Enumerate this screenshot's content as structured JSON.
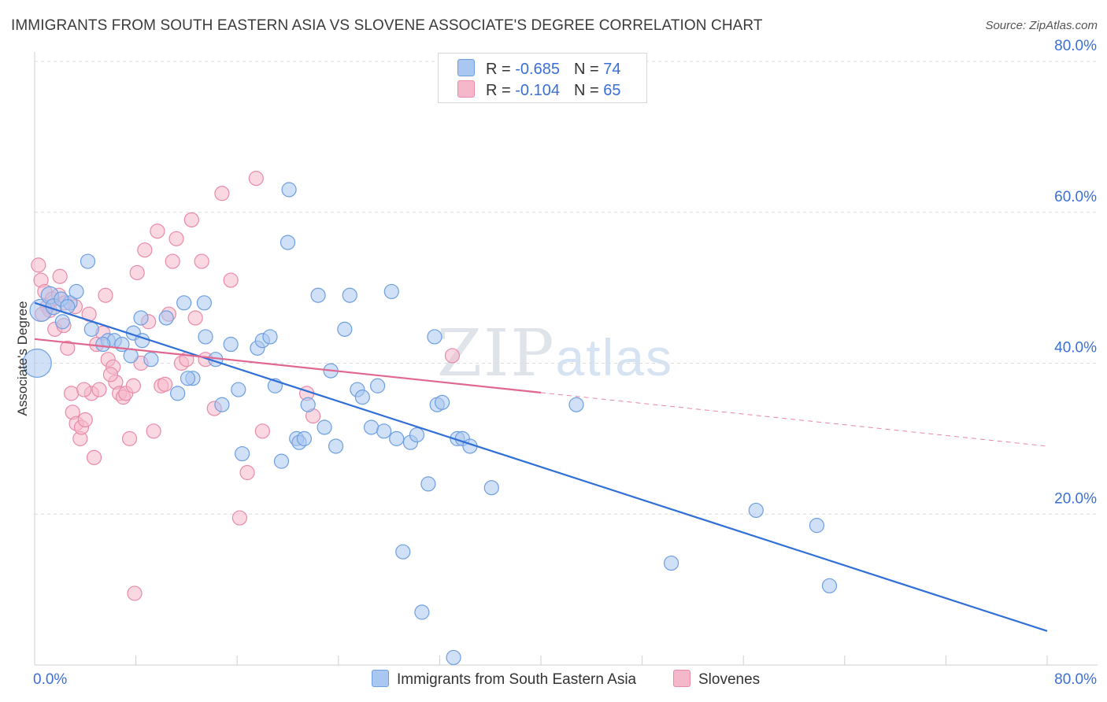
{
  "title": "IMMIGRANTS FROM SOUTH EASTERN ASIA VS SLOVENE ASSOCIATE'S DEGREE CORRELATION CHART",
  "source": "Source: ZipAtlas.com",
  "watermark": {
    "zip": "ZIP",
    "atlas": "atlas"
  },
  "legend": {
    "rows": [
      {
        "r_label": "R = ",
        "r_value": "-0.685",
        "n_label": "N = ",
        "n_value": "74",
        "color": "#a9c7f0"
      },
      {
        "r_label": "R = ",
        "r_value": "-0.104",
        "n_label": "N = ",
        "n_value": "65",
        "color": "#f5b8cb"
      }
    ]
  },
  "colors": {
    "blue_fill": "#a9c7f0",
    "blue_stroke": "#6d9fe0",
    "blue_line": "#2f6fd6",
    "pink_fill": "#f5b8cb",
    "pink_stroke": "#e98aa8",
    "pink_line": "#e0688f",
    "grid": "#dcdcdc",
    "tick_label": "#3a6fd8"
  },
  "chart_data": {
    "type": "scatter",
    "title": "IMMIGRANTS FROM SOUTH EASTERN ASIA VS SLOVENE ASSOCIATE'S DEGREE CORRELATION CHART",
    "xlabel": "",
    "ylabel": "Associate's Degree",
    "xlim": [
      0,
      80
    ],
    "ylim": [
      0,
      80
    ],
    "x_tick_labels": [
      "0.0%",
      "80.0%"
    ],
    "y_ticks": [
      20,
      40,
      60,
      80
    ],
    "y_tick_labels": [
      "20.0%",
      "40.0%",
      "60.0%",
      "80.0%"
    ],
    "series": [
      {
        "name": "Immigrants from South Eastern Asia",
        "color": "#a9c7f0",
        "trend": {
          "x0": 0,
          "y0": 48,
          "x1": 80,
          "y1": 4.5,
          "dashed_from": null
        },
        "points": [
          [
            0.2,
            40,
            18
          ],
          [
            0.5,
            47,
            14
          ],
          [
            1.2,
            49,
            11
          ],
          [
            1.5,
            47.5,
            10
          ],
          [
            2.8,
            48,
            9
          ],
          [
            2.2,
            45.5,
            9
          ],
          [
            3.3,
            49.5,
            9
          ],
          [
            2.1,
            48.5,
            9
          ],
          [
            4.2,
            53.5,
            9
          ],
          [
            2.6,
            47.5,
            9
          ],
          [
            4.5,
            44.5,
            9
          ],
          [
            5.8,
            43,
            9
          ],
          [
            6.3,
            43,
            9
          ],
          [
            5.4,
            42.5,
            9
          ],
          [
            6.9,
            42.5,
            9
          ],
          [
            7.8,
            44,
            9
          ],
          [
            8.5,
            43,
            9
          ],
          [
            8.4,
            46,
            9
          ],
          [
            7.6,
            41,
            9
          ],
          [
            10.4,
            46,
            9
          ],
          [
            11.8,
            48,
            9
          ],
          [
            12.5,
            38,
            9
          ],
          [
            12.1,
            38,
            9
          ],
          [
            9.2,
            40.5,
            9
          ],
          [
            11.3,
            36,
            9
          ],
          [
            13.5,
            43.5,
            9
          ],
          [
            13.4,
            48,
            9
          ],
          [
            14.3,
            40.5,
            9
          ],
          [
            14.8,
            34.5,
            9
          ],
          [
            15.5,
            42.5,
            9
          ],
          [
            16.1,
            36.5,
            9
          ],
          [
            16.4,
            28,
            9
          ],
          [
            17.6,
            42,
            9
          ],
          [
            18.0,
            43,
            9
          ],
          [
            18.6,
            43.5,
            9
          ],
          [
            19.0,
            37,
            9
          ],
          [
            19.5,
            27,
            9
          ],
          [
            20.0,
            56,
            9
          ],
          [
            20.1,
            63,
            9
          ],
          [
            20.7,
            30,
            9
          ],
          [
            20.9,
            29.5,
            9
          ],
          [
            21.3,
            30,
            9
          ],
          [
            21.6,
            34.5,
            9
          ],
          [
            22.4,
            49,
            9
          ],
          [
            22.9,
            31.5,
            9
          ],
          [
            23.4,
            39,
            9
          ],
          [
            23.8,
            29,
            9
          ],
          [
            24.5,
            44.5,
            9
          ],
          [
            24.9,
            49,
            9
          ],
          [
            25.5,
            36.5,
            9
          ],
          [
            25.9,
            35.5,
            9
          ],
          [
            26.6,
            31.5,
            9
          ],
          [
            27.1,
            37,
            9
          ],
          [
            27.6,
            31,
            9
          ],
          [
            28.2,
            49.5,
            9
          ],
          [
            28.6,
            30,
            9
          ],
          [
            29.1,
            15,
            9
          ],
          [
            29.7,
            29.5,
            9
          ],
          [
            30.2,
            30.5,
            9
          ],
          [
            30.6,
            7,
            9
          ],
          [
            31.1,
            24,
            9
          ],
          [
            31.6,
            43.5,
            9
          ],
          [
            31.8,
            34.5,
            9
          ],
          [
            32.2,
            34.8,
            9
          ],
          [
            33.4,
            30,
            9
          ],
          [
            33.8,
            30,
            9
          ],
          [
            34.4,
            29,
            9
          ],
          [
            36.1,
            23.5,
            9
          ],
          [
            42.8,
            34.5,
            9
          ],
          [
            50.3,
            13.5,
            9
          ],
          [
            57.0,
            20.5,
            9
          ],
          [
            61.8,
            18.5,
            9
          ],
          [
            62.8,
            10.5,
            9
          ],
          [
            33.1,
            1,
            9
          ]
        ]
      },
      {
        "name": "Slovenes",
        "color": "#f5b8cb",
        "trend": {
          "x0": 0,
          "y0": 43.2,
          "x1": 80,
          "y1": 29,
          "dashed_from": 40
        },
        "points": [
          [
            0.3,
            53,
            9
          ],
          [
            0.5,
            51,
            9
          ],
          [
            0.8,
            49.5,
            9
          ],
          [
            1.0,
            47.5,
            9
          ],
          [
            1.4,
            48.5,
            9
          ],
          [
            1.6,
            44.5,
            9
          ],
          [
            1.9,
            49,
            9
          ],
          [
            2.0,
            51.5,
            9
          ],
          [
            2.3,
            45,
            9
          ],
          [
            2.6,
            42,
            9
          ],
          [
            2.9,
            36,
            9
          ],
          [
            3.0,
            33.5,
            9
          ],
          [
            3.3,
            32,
            9
          ],
          [
            3.6,
            30,
            9
          ],
          [
            3.7,
            31.5,
            9
          ],
          [
            4.0,
            32.5,
            9
          ],
          [
            4.5,
            36,
            9
          ],
          [
            4.7,
            27.5,
            9
          ],
          [
            5.1,
            36.5,
            9
          ],
          [
            5.4,
            44,
            9
          ],
          [
            5.8,
            40.5,
            9
          ],
          [
            6.2,
            39.5,
            9
          ],
          [
            6.4,
            37.5,
            9
          ],
          [
            6.7,
            36,
            9
          ],
          [
            7.0,
            35.5,
            9
          ],
          [
            7.2,
            36,
            9
          ],
          [
            7.5,
            30,
            9
          ],
          [
            7.8,
            37,
            9
          ],
          [
            8.1,
            52,
            9
          ],
          [
            8.4,
            40,
            9
          ],
          [
            8.7,
            55,
            9
          ],
          [
            9.0,
            45.5,
            9
          ],
          [
            9.4,
            31,
            9
          ],
          [
            9.7,
            57.5,
            9
          ],
          [
            10.0,
            37,
            9
          ],
          [
            10.3,
            37.2,
            9
          ],
          [
            10.6,
            46.5,
            9
          ],
          [
            10.9,
            53.5,
            9
          ],
          [
            11.2,
            56.5,
            9
          ],
          [
            11.6,
            40,
            9
          ],
          [
            12.0,
            40.5,
            9
          ],
          [
            12.4,
            59,
            9
          ],
          [
            12.7,
            46,
            9
          ],
          [
            13.2,
            53.5,
            9
          ],
          [
            13.5,
            40.5,
            9
          ],
          [
            14.2,
            34,
            9
          ],
          [
            14.8,
            62.5,
            9
          ],
          [
            15.5,
            51,
            9
          ],
          [
            16.2,
            19.5,
            9
          ],
          [
            16.8,
            25.5,
            9
          ],
          [
            17.5,
            64.5,
            9
          ],
          [
            18.0,
            31,
            9
          ],
          [
            7.9,
            9.5,
            9
          ],
          [
            21.5,
            36,
            9
          ],
          [
            22.0,
            33,
            9
          ],
          [
            4.3,
            46.5,
            9
          ],
          [
            5.6,
            49,
            9
          ],
          [
            3.2,
            47.5,
            9
          ],
          [
            2.4,
            48,
            9
          ],
          [
            1.2,
            47,
            9
          ],
          [
            6.0,
            38.5,
            9
          ],
          [
            4.9,
            42.5,
            9
          ],
          [
            3.9,
            36.5,
            9
          ],
          [
            33.0,
            41,
            9
          ],
          [
            0.6,
            46.5,
            9
          ]
        ]
      }
    ]
  }
}
